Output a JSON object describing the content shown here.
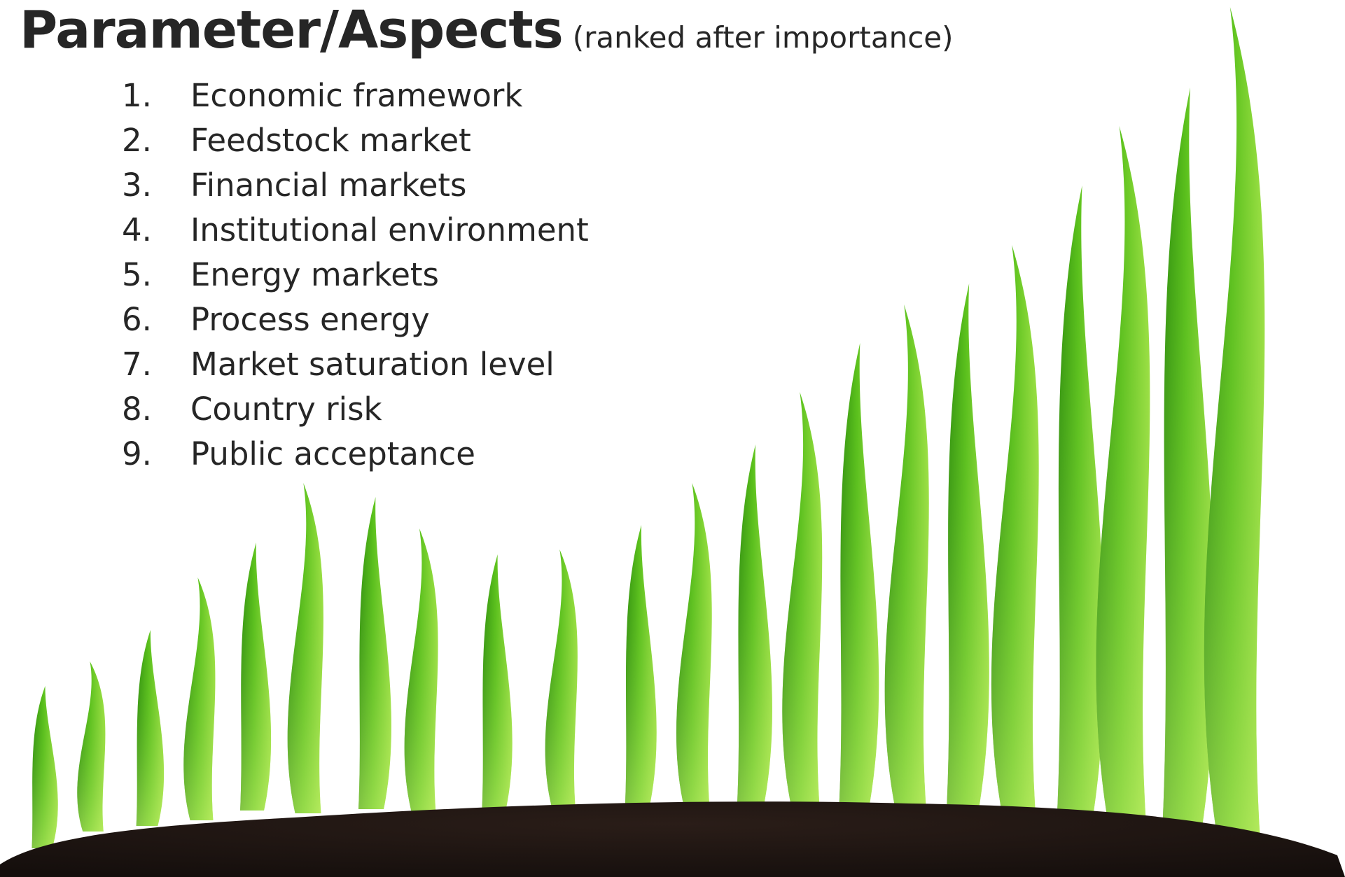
{
  "title": {
    "main": "Parameter/Aspects",
    "sub": "(ranked after importance)"
  },
  "ranking": {
    "items": [
      {
        "number": "1.",
        "label": "Economic framework"
      },
      {
        "number": "2.",
        "label": "Feedstock market"
      },
      {
        "number": "3.",
        "label": "Financial markets"
      },
      {
        "number": "4.",
        "label": "Institutional environment"
      },
      {
        "number": "5.",
        "label": "Energy markets"
      },
      {
        "number": "6.",
        "label": "Process energy"
      },
      {
        "number": "7.",
        "label": "Market saturation level"
      },
      {
        "number": "8.",
        "label": "Country risk"
      },
      {
        "number": "9.",
        "label": "Public acceptance"
      }
    ]
  },
  "colors": {
    "text": "#262626",
    "sprout_dark": "#2f8f0e",
    "sprout_mid": "#5cc21d",
    "sprout_light": "#a8e84a",
    "soil": "#1e1512"
  }
}
